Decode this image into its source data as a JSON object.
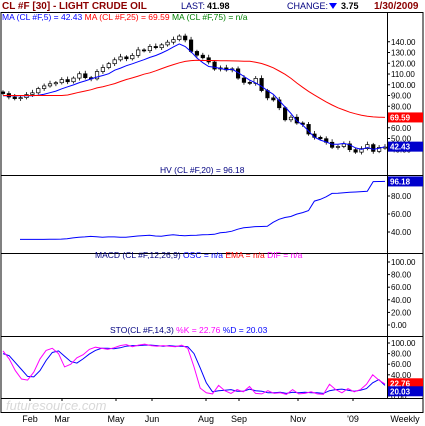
{
  "header": {
    "symbol": "CL #F [30] - LIGHT CRUDE OIL",
    "last_label": "LAST:",
    "last_value": "41.98",
    "change_label": "CHANGE:",
    "change_value": "3.75",
    "date": "1/30/2009"
  },
  "colors": {
    "header_text": "#8b0000",
    "panel_title": "#000080",
    "price_line": "#000080",
    "ma5": "#0000ff",
    "ma25": "#ff0000",
    "ma75": "#008000",
    "hv": "#0000ff",
    "stoch_k": "#ff00ff",
    "stoch_d": "#0000ff",
    "badge_red": "#ff0000",
    "badge_blue": "#0000cc",
    "down_arrow": "#0000ff"
  },
  "x_axis": {
    "labels": [
      "Feb",
      "Mar",
      "May",
      "Jun",
      "Aug",
      "Sep",
      "Nov",
      "'09",
      "Weekly"
    ]
  },
  "watermark": "futuresource.com",
  "chart_data": [
    {
      "type": "candlestick",
      "title": "MA (CL #F,5) = 42.43 MA (CL #F,25) = 69.59 MA (CL #F,75) = n/a",
      "legend": [
        {
          "text": "MA (CL #F,5) = 42.43",
          "color": "#0000ff"
        },
        {
          "text": "MA (CL #F,25) = 69.59",
          "color": "#ff0000"
        },
        {
          "text": "MA (CL #F,75) = n/a",
          "color": "#008000"
        }
      ],
      "ylim": [
        30,
        150
      ],
      "yticks": [
        "140.00",
        "130.00",
        "120.00",
        "110.00",
        "100.00",
        "90.00",
        "80.00",
        "70.00",
        "60.00",
        "50.00",
        "40.00"
      ],
      "badges": [
        {
          "text": "69.59",
          "value": 69.59,
          "color": "#ff0000"
        },
        {
          "text": "42.43",
          "value": 42.43,
          "color": "#0000cc"
        }
      ],
      "series": [
        {
          "name": "price_close",
          "values": [
            91.8,
            88.6,
            87.1,
            88.0,
            90.9,
            92.5,
            96.5,
            98.9,
            100.9,
            101.9,
            104.8,
            102.8,
            106.2,
            110.2,
            106.6,
            105.5,
            112.3,
            116.0,
            119.6,
            123.2,
            125.9,
            124.2,
            127.3,
            132.4,
            131.7,
            135.6,
            134.5,
            137.1,
            139.6,
            142.0,
            145.3,
            141.7,
            131.0,
            127.5,
            125.1,
            121.2,
            114.6,
            115.7,
            113.8,
            114.8,
            106.2,
            102.2,
            101.3,
            105.9,
            94.6,
            87.8,
            85.9,
            78.6,
            67.4,
            69.8,
            64.4,
            63.1,
            54.2,
            51.1,
            49.8,
            46.5,
            41.8,
            42.6,
            45.0,
            39.6,
            37.3,
            40.6,
            44.3,
            38.0,
            41.7,
            41.98
          ]
        },
        {
          "name": "ma5",
          "values": [
            89.8,
            89.8,
            89.8,
            89.8,
            89.8,
            89.8,
            90.2,
            91.2,
            92.6,
            94.1,
            96.2,
            98.1,
            99.9,
            102.0,
            103.6,
            105.4,
            107.2,
            108.6,
            110.3,
            113.5,
            115.5,
            117.7,
            119.5,
            121.4,
            123.3,
            125.4,
            127.2,
            129.5,
            132.1,
            135.2,
            138.0,
            135.6,
            130.7,
            124.9,
            120.5,
            117.0,
            116.3,
            115.1,
            114.0,
            114.4,
            111.3,
            107.7,
            104.2,
            101.7,
            98.5,
            94.5,
            91.1,
            85.3,
            79.3,
            73.3,
            66.4,
            62.6,
            56.8,
            51.2,
            48.5,
            46.7,
            44.6,
            44.6,
            45.4,
            44.1,
            41.3,
            39.9,
            41.6,
            39.9,
            41.0,
            42.4
          ]
        },
        {
          "name": "ma25",
          "values": [
            90.0,
            90.0,
            90.0,
            90.0,
            90.0,
            90.0,
            90.0,
            90.0,
            90.0,
            90.0,
            90.0,
            90.5,
            91.8,
            93.1,
            94.2,
            95.4,
            97.1,
            98.2,
            99.6,
            101.1,
            103.0,
            104.9,
            106.4,
            108.0,
            109.8,
            111.1,
            113.0,
            115.0,
            117.0,
            118.7,
            120.4,
            121.7,
            122.5,
            122.8,
            122.6,
            122.6,
            122.6,
            122.4,
            122.3,
            122.2,
            122.1,
            121.9,
            121.8,
            121.0,
            119.8,
            117.9,
            115.8,
            112.8,
            109.7,
            105.9,
            101.6,
            97.6,
            93.8,
            90.4,
            87.1,
            84.0,
            81.2,
            78.6,
            76.5,
            74.5,
            73.0,
            71.7,
            70.7,
            70.1,
            69.8,
            69.59
          ]
        }
      ]
    },
    {
      "type": "line",
      "title": "HV (CL #F,20) = 96.18",
      "ylim": [
        20,
        100
      ],
      "yticks": [
        "80.00",
        "60.00",
        "40.00"
      ],
      "badges": [
        {
          "text": "96.18",
          "value": 96.18,
          "color": "#0000cc"
        }
      ],
      "series": [
        {
          "name": "HV (CL #F,20)",
          "values": [
            31.8,
            31.8,
            31.8,
            31.8,
            31.8,
            31.9,
            32.0,
            32.1,
            32.5,
            33.4,
            34.2,
            34.6,
            35.1,
            34.7,
            34.2,
            34.5,
            34.5,
            34.1,
            34.2,
            34.9,
            35.6,
            36.0,
            36.3,
            35.6,
            35.3,
            36.2,
            37.0,
            36.2,
            35.8,
            36.2,
            36.5,
            37.0,
            37.1,
            37.5,
            39.1,
            39.7,
            40.9,
            43.1,
            44.7,
            45.3,
            46.0,
            46.1,
            46.3,
            50.8,
            54.1,
            56.1,
            57.2,
            59.9,
            61.6,
            63.8,
            74.3,
            76.2,
            79.1,
            82.9,
            83.0,
            83.7,
            84.1,
            84.4,
            84.9,
            85.2,
            96.0,
            96.1,
            96.18
          ]
        }
      ]
    },
    {
      "type": "line",
      "title": "MACD (CL #F,12,26,9) OSC = n/a EMA = n/a DIF = n/a",
      "legend": [
        {
          "text": "MACD (CL #F,12,26,9)",
          "color": "#000080"
        },
        {
          "text": "OSC = n/a",
          "color": "#0000ff"
        },
        {
          "text": "EMA = n/a",
          "color": "#ff0000"
        },
        {
          "text": "DIF = n/a",
          "color": "#ff00ff"
        }
      ],
      "ylim": [
        0,
        100
      ],
      "yticks": [
        "100.00",
        "80.00",
        "60.00",
        "40.00",
        "20.00",
        "0.00"
      ],
      "series": []
    },
    {
      "type": "line",
      "title": "STO(CL #F,14,3) %K = 22.76 %D = 20.03",
      "legend": [
        {
          "text": "STO(CL #F,14,3)",
          "color": "#000080"
        },
        {
          "text": "%K = 22.76",
          "color": "#ff00ff"
        },
        {
          "text": "%D = 20.03",
          "color": "#0000ff"
        }
      ],
      "ylim": [
        0,
        100
      ],
      "yticks": [
        "100.00",
        "80.00",
        "60.00",
        "40.00",
        "20.00",
        "0.00"
      ],
      "badges": [
        {
          "text": "22.76",
          "value": 22.76,
          "color": "#ff0000"
        },
        {
          "text": "20.03",
          "value": 20.03,
          "color": "#0000cc"
        }
      ],
      "series": [
        {
          "name": "%K",
          "values": [
            85,
            70,
            48,
            32,
            30,
            45,
            70,
            86,
            90,
            80,
            55,
            60,
            72,
            78,
            88,
            92,
            90,
            88,
            91,
            95,
            97,
            93,
            96,
            98,
            95,
            94,
            95,
            94,
            93,
            96,
            90,
            55,
            15,
            6,
            4,
            20,
            10,
            5,
            12,
            8,
            18,
            5,
            4,
            10,
            5,
            6,
            3,
            12,
            4,
            5,
            8,
            4,
            3,
            22,
            12,
            6,
            14,
            8,
            12,
            22,
            40,
            30,
            22.76
          ]
        },
        {
          "name": "%D",
          "values": [
            80,
            76,
            63,
            50,
            37,
            36,
            48,
            67,
            82,
            85,
            75,
            65,
            62,
            70,
            79,
            86,
            90,
            90,
            89,
            91,
            94,
            95,
            95,
            96,
            96,
            95,
            94,
            95,
            94,
            94,
            93,
            80,
            53,
            25,
            8,
            10,
            11,
            12,
            9,
            9,
            13,
            10,
            9,
            6,
            6,
            7,
            5,
            7,
            6,
            7,
            6,
            6,
            5,
            10,
            12,
            13,
            11,
            9,
            11,
            14,
            25,
            31,
            20.03
          ]
        }
      ]
    }
  ]
}
